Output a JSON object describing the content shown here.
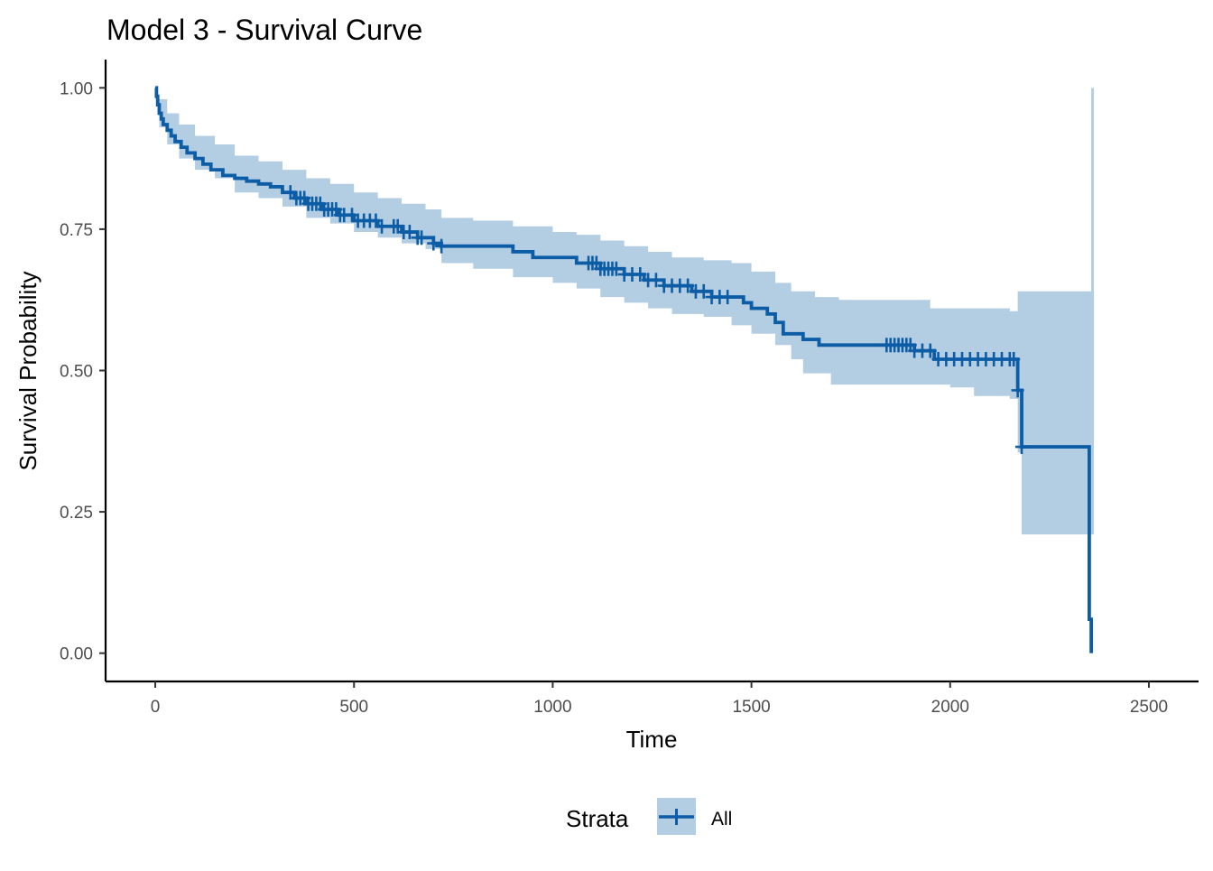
{
  "chart_data": {
    "type": "line",
    "title": "Model 3 - Survival Curve",
    "xlabel": "Time",
    "ylabel": "Survival Probability",
    "xlim": [
      -125,
      2625
    ],
    "ylim": [
      -0.05,
      1.05
    ],
    "xticks": [
      0,
      500,
      1000,
      1500,
      2000,
      2500
    ],
    "xtick_labels": [
      "0",
      "500",
      "1000",
      "1500",
      "2000",
      "2500"
    ],
    "yticks": [
      0,
      0.25,
      0.5,
      0.75,
      1.0
    ],
    "ytick_labels": [
      "0.00",
      "0.25",
      "0.50",
      "0.75",
      "1.00"
    ],
    "grid": false,
    "legend": {
      "title": "Strata",
      "position": "bottom",
      "entries": [
        "All"
      ]
    },
    "colors": {
      "line": "#0c5da5",
      "ribbon": "#b3cde3"
    },
    "series": [
      {
        "name": "All",
        "step": [
          [
            0,
            1.0
          ],
          [
            3,
            0.985
          ],
          [
            6,
            0.97
          ],
          [
            10,
            0.955
          ],
          [
            15,
            0.945
          ],
          [
            20,
            0.935
          ],
          [
            30,
            0.925
          ],
          [
            40,
            0.915
          ],
          [
            50,
            0.905
          ],
          [
            65,
            0.895
          ],
          [
            80,
            0.885
          ],
          [
            100,
            0.875
          ],
          [
            120,
            0.865
          ],
          [
            140,
            0.855
          ],
          [
            170,
            0.845
          ],
          [
            200,
            0.84
          ],
          [
            230,
            0.835
          ],
          [
            260,
            0.83
          ],
          [
            290,
            0.825
          ],
          [
            320,
            0.815
          ],
          [
            350,
            0.805
          ],
          [
            380,
            0.795
          ],
          [
            420,
            0.785
          ],
          [
            460,
            0.775
          ],
          [
            500,
            0.765
          ],
          [
            560,
            0.755
          ],
          [
            620,
            0.745
          ],
          [
            660,
            0.735
          ],
          [
            700,
            0.725
          ],
          [
            720,
            0.72
          ],
          [
            900,
            0.71
          ],
          [
            950,
            0.7
          ],
          [
            1060,
            0.69
          ],
          [
            1120,
            0.68
          ],
          [
            1180,
            0.67
          ],
          [
            1230,
            0.66
          ],
          [
            1280,
            0.65
          ],
          [
            1350,
            0.64
          ],
          [
            1400,
            0.63
          ],
          [
            1480,
            0.62
          ],
          [
            1500,
            0.61
          ],
          [
            1540,
            0.6
          ],
          [
            1560,
            0.585
          ],
          [
            1580,
            0.565
          ],
          [
            1630,
            0.555
          ],
          [
            1670,
            0.545
          ],
          [
            1910,
            0.535
          ],
          [
            1960,
            0.52
          ],
          [
            2170,
            0.465
          ],
          [
            2180,
            0.365
          ],
          [
            2350,
            0.06
          ],
          [
            2355,
            0.0
          ]
        ],
        "ci_lower": [
          [
            0,
            1.0
          ],
          [
            10,
            0.93
          ],
          [
            30,
            0.9
          ],
          [
            60,
            0.875
          ],
          [
            100,
            0.855
          ],
          [
            150,
            0.84
          ],
          [
            200,
            0.815
          ],
          [
            260,
            0.805
          ],
          [
            320,
            0.79
          ],
          [
            380,
            0.77
          ],
          [
            440,
            0.76
          ],
          [
            500,
            0.745
          ],
          [
            560,
            0.735
          ],
          [
            620,
            0.725
          ],
          [
            680,
            0.715
          ],
          [
            720,
            0.69
          ],
          [
            800,
            0.68
          ],
          [
            900,
            0.665
          ],
          [
            1000,
            0.655
          ],
          [
            1060,
            0.645
          ],
          [
            1120,
            0.63
          ],
          [
            1180,
            0.62
          ],
          [
            1240,
            0.61
          ],
          [
            1300,
            0.6
          ],
          [
            1380,
            0.595
          ],
          [
            1450,
            0.58
          ],
          [
            1500,
            0.565
          ],
          [
            1560,
            0.545
          ],
          [
            1600,
            0.52
          ],
          [
            1630,
            0.495
          ],
          [
            1700,
            0.475
          ],
          [
            2000,
            0.47
          ],
          [
            2060,
            0.455
          ],
          [
            2150,
            0.45
          ],
          [
            2170,
            0.355
          ],
          [
            2180,
            0.21
          ],
          [
            2355,
            0.21
          ]
        ],
        "ci_upper": [
          [
            0,
            1.0
          ],
          [
            10,
            0.98
          ],
          [
            30,
            0.955
          ],
          [
            60,
            0.935
          ],
          [
            100,
            0.915
          ],
          [
            150,
            0.9
          ],
          [
            200,
            0.88
          ],
          [
            260,
            0.87
          ],
          [
            320,
            0.855
          ],
          [
            380,
            0.84
          ],
          [
            440,
            0.83
          ],
          [
            500,
            0.815
          ],
          [
            560,
            0.805
          ],
          [
            620,
            0.795
          ],
          [
            680,
            0.785
          ],
          [
            720,
            0.77
          ],
          [
            800,
            0.765
          ],
          [
            900,
            0.755
          ],
          [
            1000,
            0.745
          ],
          [
            1060,
            0.74
          ],
          [
            1120,
            0.73
          ],
          [
            1180,
            0.72
          ],
          [
            1240,
            0.71
          ],
          [
            1300,
            0.7
          ],
          [
            1380,
            0.695
          ],
          [
            1450,
            0.69
          ],
          [
            1500,
            0.675
          ],
          [
            1560,
            0.655
          ],
          [
            1600,
            0.64
          ],
          [
            1660,
            0.63
          ],
          [
            1720,
            0.625
          ],
          [
            1950,
            0.61
          ],
          [
            2100,
            0.61
          ],
          [
            2150,
            0.605
          ],
          [
            2170,
            0.64
          ],
          [
            2350,
            0.64
          ],
          [
            2355,
            1.0
          ]
        ],
        "censor_times": [
          340,
          355,
          365,
          375,
          385,
          395,
          405,
          415,
          425,
          435,
          445,
          455,
          465,
          475,
          495,
          510,
          525,
          540,
          555,
          570,
          600,
          610,
          625,
          640,
          660,
          670,
          700,
          720,
          1090,
          1100,
          1110,
          1120,
          1130,
          1140,
          1150,
          1160,
          1180,
          1200,
          1220,
          1240,
          1260,
          1280,
          1300,
          1320,
          1340,
          1360,
          1380,
          1400,
          1420,
          1440,
          1840,
          1850,
          1860,
          1870,
          1880,
          1890,
          1900,
          1910,
          1930,
          1950,
          1970,
          1990,
          2010,
          2030,
          2050,
          2070,
          2090,
          2110,
          2130,
          2150,
          2160,
          2170,
          2180
        ]
      }
    ]
  }
}
